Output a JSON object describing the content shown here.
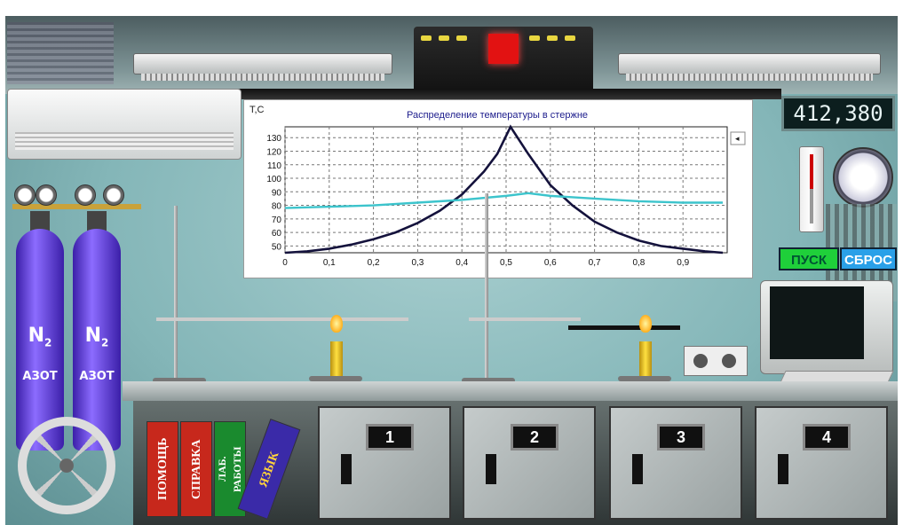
{
  "chart_data": {
    "type": "line",
    "title": "Распределение температуры в стержне",
    "ylabel": "T,C",
    "xlabel": "",
    "xlim": [
      0,
      1.0
    ],
    "ylim": [
      45,
      138
    ],
    "x_ticks": [
      "0",
      "0,1",
      "0,2",
      "0,3",
      "0,4",
      "0,5",
      "0,6",
      "0,7",
      "0,8",
      "0,9"
    ],
    "y_ticks": [
      "50",
      "60",
      "70",
      "80",
      "90",
      "100",
      "110",
      "120",
      "130"
    ],
    "grid": true,
    "series": [
      {
        "color": "#14123c",
        "x": [
          0,
          0.05,
          0.1,
          0.15,
          0.2,
          0.25,
          0.3,
          0.35,
          0.4,
          0.45,
          0.48,
          0.51,
          0.55,
          0.6,
          0.65,
          0.7,
          0.75,
          0.8,
          0.85,
          0.9,
          0.95,
          0.99
        ],
        "y": [
          45,
          46,
          48,
          51,
          55,
          60,
          67,
          76,
          88,
          105,
          118,
          138,
          118,
          95,
          80,
          68,
          60,
          54,
          50,
          48,
          46,
          45
        ]
      },
      {
        "color": "#3cc4cc",
        "x": [
          0,
          0.1,
          0.2,
          0.3,
          0.4,
          0.5,
          0.55,
          0.6,
          0.7,
          0.8,
          0.9,
          0.99
        ],
        "y": [
          78,
          79,
          80,
          82,
          84,
          87,
          89,
          87,
          85,
          83,
          82,
          82
        ]
      }
    ]
  },
  "counter": {
    "value": "412,380"
  },
  "controls": {
    "start_label": "ПУСК",
    "reset_label": "СБРОС"
  },
  "cylinders": [
    {
      "formula": "N",
      "sub": "2",
      "label": "АЗОТ"
    },
    {
      "formula": "N",
      "sub": "2",
      "label": "АЗОТ"
    }
  ],
  "books": {
    "help": "ПОМОЩЬ",
    "reference": "СПРАВКА",
    "lab_line1": "ЛАБ.",
    "lab_line2": "РАБОТЫ",
    "language": "ЯЗЫК"
  },
  "drawers": [
    "1",
    "2",
    "3",
    "4"
  ],
  "colors": {
    "start": "#1fd03a",
    "reset": "#2aa0e8",
    "cylinder": "#5b3ce0"
  }
}
